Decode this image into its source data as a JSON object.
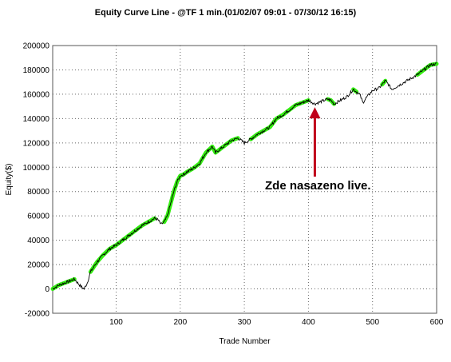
{
  "chart_data": {
    "type": "line",
    "title": "Equity Curve Line - @TF 1 min.(01/02/07 09:01 - 07/30/12 16:15)",
    "xlabel": "Trade Number",
    "ylabel": "Equity($)",
    "xlim": [
      1,
      600
    ],
    "ylim": [
      -20000,
      200000
    ],
    "xticks": [
      100,
      200,
      300,
      400,
      500,
      600
    ],
    "yticks": [
      -20000,
      0,
      20000,
      40000,
      60000,
      80000,
      100000,
      120000,
      140000,
      160000,
      180000,
      200000
    ],
    "ytick_labels": [
      "-20000",
      "0",
      "20000",
      "40000",
      "60000",
      "80000",
      "100000",
      "120000",
      "140000",
      "160000",
      "180000",
      "200000"
    ],
    "xtick_labels": [
      "100",
      "200",
      "300",
      "400",
      "500",
      "600"
    ],
    "grid": true,
    "series": [
      {
        "line_color": "#000000",
        "highlight_color": "#33ee11",
        "x": [
          1,
          10,
          20,
          30,
          35,
          40,
          45,
          50,
          55,
          60,
          70,
          80,
          90,
          100,
          110,
          120,
          130,
          140,
          150,
          160,
          165,
          170,
          175,
          180,
          185,
          190,
          195,
          200,
          205,
          210,
          220,
          230,
          240,
          250,
          255,
          260,
          270,
          280,
          290,
          300,
          310,
          320,
          330,
          340,
          350,
          360,
          370,
          380,
          390,
          400,
          410,
          420,
          430,
          435,
          440,
          450,
          460,
          470,
          480,
          485,
          490,
          495,
          500,
          510,
          520,
          525,
          530,
          540,
          550,
          560,
          570,
          580,
          590,
          600
        ],
        "y": [
          0,
          3000,
          5000,
          7000,
          8000,
          5000,
          2000,
          0,
          5000,
          14000,
          22000,
          28000,
          33000,
          36000,
          40000,
          44000,
          48000,
          52000,
          55000,
          58000,
          57000,
          53000,
          55000,
          60000,
          70000,
          80000,
          88000,
          93000,
          94000,
          96000,
          99000,
          103000,
          112000,
          117000,
          112000,
          114000,
          118000,
          122000,
          124000,
          120000,
          123000,
          127000,
          130000,
          133000,
          140000,
          143000,
          147000,
          151000,
          153000,
          155000,
          152000,
          154000,
          156000,
          155000,
          152000,
          155000,
          158000,
          164000,
          160000,
          153000,
          157000,
          160000,
          163000,
          165000,
          171000,
          168000,
          164000,
          167000,
          170000,
          173000,
          176000,
          180000,
          184000,
          185000
        ],
        "highlight_x": [
          [
            1,
            35
          ],
          [
            60,
            160
          ],
          [
            175,
            290
          ],
          [
            310,
            400
          ],
          [
            430,
            440
          ],
          [
            470,
            475
          ],
          [
            515,
            520
          ],
          [
            570,
            600
          ]
        ]
      }
    ],
    "annotations": [
      {
        "text": "Zde nasazeno live.",
        "arrow_to": [
          410,
          152000
        ]
      }
    ]
  }
}
